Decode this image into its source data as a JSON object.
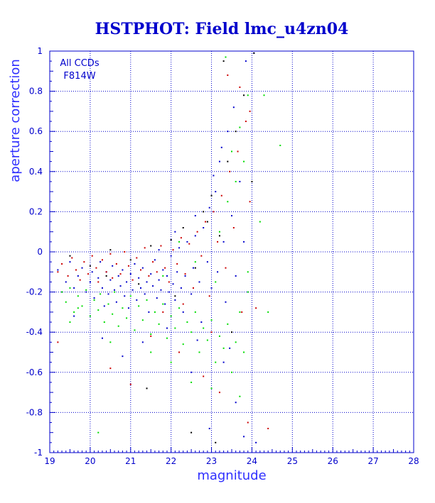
{
  "chart_data": {
    "type": "scatter",
    "title": "HSTPHOT: Field lmc_u4zn04",
    "xlabel": "magnitude",
    "ylabel": "aperture correction",
    "xlim": [
      19,
      28
    ],
    "ylim": [
      -1,
      1
    ],
    "xticks": [
      "19",
      "20",
      "21",
      "22",
      "23",
      "24",
      "25",
      "26",
      "27",
      "28"
    ],
    "yticks": [
      "-1",
      "-0.8",
      "-0.6",
      "-0.4",
      "-0.2",
      "0",
      "0.2",
      "0.4",
      "0.6",
      "0.8",
      "1"
    ],
    "grid": true,
    "annotations": [
      "All CCDs",
      "F814W"
    ],
    "series": [
      {
        "color": "#0000cc",
        "points": [
          [
            19.2,
            -0.09
          ],
          [
            19.4,
            -0.15
          ],
          [
            19.5,
            -0.05
          ],
          [
            19.6,
            -0.18
          ],
          [
            19.7,
            -0.12
          ],
          [
            19.8,
            -0.08
          ],
          [
            19.9,
            -0.2
          ],
          [
            20.0,
            -0.15
          ],
          [
            20.05,
            -0.1
          ],
          [
            20.1,
            -0.23
          ],
          [
            20.2,
            -0.13
          ],
          [
            20.25,
            -0.05
          ],
          [
            20.3,
            -0.18
          ],
          [
            20.35,
            -0.27
          ],
          [
            20.4,
            -0.1
          ],
          [
            20.45,
            -0.21
          ],
          [
            20.5,
            -0.14
          ],
          [
            20.55,
            -0.07
          ],
          [
            20.6,
            -0.19
          ],
          [
            20.65,
            -0.25
          ],
          [
            20.7,
            -0.12
          ],
          [
            20.75,
            -0.17
          ],
          [
            20.8,
            -0.09
          ],
          [
            20.85,
            -0.22
          ],
          [
            20.9,
            -0.15
          ],
          [
            20.95,
            -0.28
          ],
          [
            21.0,
            -0.11
          ],
          [
            21.05,
            -0.19
          ],
          [
            21.1,
            -0.06
          ],
          [
            21.15,
            -0.24
          ],
          [
            21.2,
            -0.13
          ],
          [
            21.25,
            -0.18
          ],
          [
            21.3,
            -0.08
          ],
          [
            21.35,
            -0.21
          ],
          [
            21.4,
            -0.15
          ],
          [
            21.45,
            -0.3
          ],
          [
            21.5,
            -0.11
          ],
          [
            21.55,
            -0.17
          ],
          [
            21.6,
            -0.04
          ],
          [
            21.65,
            -0.23
          ],
          [
            21.7,
            -0.14
          ],
          [
            21.75,
            -0.19
          ],
          [
            21.8,
            -0.09
          ],
          [
            21.85,
            -0.26
          ],
          [
            21.9,
            -0.12
          ],
          [
            21.95,
            -0.2
          ],
          [
            22.0,
            -0.02
          ],
          [
            22.05,
            -0.16
          ],
          [
            22.1,
            -0.24
          ],
          [
            22.15,
            -0.1
          ],
          [
            22.2,
            0.02
          ],
          [
            22.25,
            -0.18
          ],
          [
            22.3,
            -0.3
          ],
          [
            22.35,
            -0.12
          ],
          [
            22.4,
            0.05
          ],
          [
            22.5,
            -0.21
          ],
          [
            22.55,
            -0.08
          ],
          [
            22.6,
            0.08
          ],
          [
            22.7,
            -0.15
          ],
          [
            22.75,
            -0.35
          ],
          [
            22.8,
            0.12
          ],
          [
            22.9,
            -0.05
          ],
          [
            22.95,
            0.22
          ],
          [
            23.0,
            -0.18
          ],
          [
            23.1,
            0.3
          ],
          [
            23.15,
            -0.1
          ],
          [
            23.2,
            0.45
          ],
          [
            23.3,
            0.05
          ],
          [
            23.35,
            -0.25
          ],
          [
            23.4,
            0.6
          ],
          [
            23.5,
            0.18
          ],
          [
            23.6,
            -0.12
          ],
          [
            23.7,
            0.35
          ],
          [
            23.8,
            0.05
          ],
          [
            23.9,
            -0.2
          ],
          [
            22.5,
            -0.6
          ],
          [
            23.3,
            -0.55
          ],
          [
            21.3,
            -0.45
          ],
          [
            20.8,
            -0.52
          ],
          [
            23.6,
            -0.75
          ],
          [
            22.95,
            -0.88
          ],
          [
            23.8,
            -0.92
          ],
          [
            24.1,
            -0.95
          ],
          [
            20.3,
            -0.43
          ],
          [
            19.6,
            -0.32
          ],
          [
            21.7,
            0.01
          ],
          [
            22.1,
            0.1
          ],
          [
            22.6,
            0.18
          ],
          [
            23.05,
            0.38
          ],
          [
            23.25,
            0.52
          ],
          [
            23.55,
            0.72
          ],
          [
            23.85,
            0.95
          ],
          [
            24.05,
            0.99
          ],
          [
            21.9,
            -0.38
          ],
          [
            22.65,
            -0.44
          ],
          [
            23.45,
            -0.48
          ]
        ]
      },
      {
        "color": "#cc0000",
        "points": [
          [
            19.2,
            -0.1
          ],
          [
            19.3,
            -0.06
          ],
          [
            19.45,
            -0.12
          ],
          [
            19.55,
            -0.03
          ],
          [
            19.65,
            -0.09
          ],
          [
            19.75,
            -0.14
          ],
          [
            19.85,
            -0.05
          ],
          [
            19.95,
            -0.11
          ],
          [
            20.05,
            -0.02
          ],
          [
            20.15,
            -0.08
          ],
          [
            20.2,
            -0.15
          ],
          [
            20.3,
            -0.04
          ],
          [
            20.4,
            -0.1
          ],
          [
            20.5,
            -0.01
          ],
          [
            20.55,
            -0.13
          ],
          [
            20.65,
            -0.06
          ],
          [
            20.75,
            -0.11
          ],
          [
            20.85,
            0.0
          ],
          [
            20.95,
            -0.07
          ],
          [
            21.05,
            -0.14
          ],
          [
            21.15,
            -0.03
          ],
          [
            21.25,
            -0.09
          ],
          [
            21.35,
            0.02
          ],
          [
            21.45,
            -0.12
          ],
          [
            21.55,
            -0.05
          ],
          [
            21.65,
            -0.1
          ],
          [
            21.75,
            0.03
          ],
          [
            21.85,
            -0.08
          ],
          [
            21.95,
            -0.15
          ],
          [
            22.05,
            0.01
          ],
          [
            22.15,
            -0.06
          ],
          [
            22.25,
            0.07
          ],
          [
            22.35,
            -0.11
          ],
          [
            22.45,
            0.04
          ],
          [
            22.55,
            -0.18
          ],
          [
            22.65,
            0.1
          ],
          [
            22.75,
            -0.02
          ],
          [
            22.85,
            0.15
          ],
          [
            22.95,
            -0.22
          ],
          [
            23.05,
            0.2
          ],
          [
            23.15,
            0.05
          ],
          [
            23.25,
            0.28
          ],
          [
            23.35,
            -0.08
          ],
          [
            23.45,
            0.4
          ],
          [
            23.55,
            0.12
          ],
          [
            23.65,
            0.5
          ],
          [
            23.75,
            -0.3
          ],
          [
            23.85,
            0.65
          ],
          [
            23.95,
            0.25
          ],
          [
            23.4,
            0.88
          ],
          [
            23.7,
            0.82
          ],
          [
            23.95,
            0.7
          ],
          [
            21.5,
            -0.42
          ],
          [
            20.5,
            -0.58
          ],
          [
            22.2,
            -0.5
          ],
          [
            21.0,
            -0.66
          ],
          [
            22.8,
            -0.62
          ],
          [
            23.9,
            -0.85
          ],
          [
            24.4,
            -0.88
          ],
          [
            19.2,
            -0.45
          ],
          [
            24.1,
            -0.28
          ],
          [
            23.2,
            -0.7
          ],
          [
            22.3,
            -0.26
          ],
          [
            21.8,
            -0.3
          ],
          [
            23.0,
            -0.4
          ]
        ]
      },
      {
        "color": "#00dd00",
        "points": [
          [
            19.3,
            -0.2
          ],
          [
            19.4,
            -0.25
          ],
          [
            19.5,
            -0.18
          ],
          [
            19.6,
            -0.3
          ],
          [
            19.7,
            -0.22
          ],
          [
            19.8,
            -0.27
          ],
          [
            19.9,
            -0.19
          ],
          [
            20.0,
            -0.32
          ],
          [
            20.1,
            -0.24
          ],
          [
            20.2,
            -0.29
          ],
          [
            20.25,
            -0.21
          ],
          [
            20.35,
            -0.35
          ],
          [
            20.45,
            -0.26
          ],
          [
            20.55,
            -0.31
          ],
          [
            20.6,
            -0.2
          ],
          [
            20.7,
            -0.37
          ],
          [
            20.8,
            -0.28
          ],
          [
            20.9,
            -0.33
          ],
          [
            21.0,
            -0.22
          ],
          [
            21.1,
            -0.39
          ],
          [
            21.2,
            -0.27
          ],
          [
            21.3,
            -0.34
          ],
          [
            21.4,
            -0.24
          ],
          [
            21.5,
            -0.41
          ],
          [
            21.6,
            -0.3
          ],
          [
            21.7,
            -0.36
          ],
          [
            21.8,
            -0.26
          ],
          [
            21.9,
            -0.43
          ],
          [
            22.0,
            -0.32
          ],
          [
            22.1,
            -0.38
          ],
          [
            22.2,
            -0.28
          ],
          [
            22.3,
            -0.46
          ],
          [
            22.4,
            -0.35
          ],
          [
            22.5,
            -0.4
          ],
          [
            22.6,
            -0.3
          ],
          [
            22.7,
            -0.5
          ],
          [
            22.8,
            -0.38
          ],
          [
            22.9,
            -0.44
          ],
          [
            23.0,
            -0.34
          ],
          [
            23.1,
            -0.55
          ],
          [
            23.2,
            -0.42
          ],
          [
            23.3,
            -0.48
          ],
          [
            23.4,
            -0.36
          ],
          [
            23.5,
            -0.6
          ],
          [
            23.6,
            -0.45
          ],
          [
            23.7,
            -0.3
          ],
          [
            23.8,
            -0.5
          ],
          [
            23.9,
            -0.2
          ],
          [
            23.2,
            0.1
          ],
          [
            23.4,
            0.25
          ],
          [
            23.6,
            0.35
          ],
          [
            23.8,
            0.45
          ],
          [
            23.5,
            0.5
          ],
          [
            23.7,
            0.62
          ],
          [
            23.9,
            0.78
          ],
          [
            23.35,
            0.97
          ],
          [
            24.3,
            0.78
          ],
          [
            24.7,
            0.53
          ],
          [
            24.2,
            0.15
          ],
          [
            24.4,
            -0.3
          ],
          [
            22.0,
            -0.55
          ],
          [
            21.5,
            -0.5
          ],
          [
            20.5,
            -0.45
          ],
          [
            22.5,
            -0.65
          ],
          [
            23.0,
            -0.68
          ],
          [
            23.7,
            -0.72
          ],
          [
            19.5,
            -0.35
          ],
          [
            19.7,
            -0.28
          ],
          [
            20.2,
            -0.9
          ],
          [
            21.8,
            -0.12
          ],
          [
            22.6,
            -0.05
          ],
          [
            23.1,
            -0.15
          ],
          [
            22.2,
            0.05
          ],
          [
            23.9,
            -0.1
          ]
        ]
      },
      {
        "color": "#000000",
        "points": [
          [
            19.5,
            -0.02
          ],
          [
            20.0,
            -0.07
          ],
          [
            20.5,
            0.01
          ],
          [
            21.0,
            -0.04
          ],
          [
            21.5,
            0.03
          ],
          [
            22.0,
            0.06
          ],
          [
            22.3,
            0.12
          ],
          [
            22.6,
            -0.08
          ],
          [
            22.8,
            0.2
          ],
          [
            23.0,
            0.28
          ],
          [
            23.2,
            0.08
          ],
          [
            23.4,
            0.45
          ],
          [
            23.6,
            0.6
          ],
          [
            23.8,
            0.78
          ],
          [
            24.05,
            0.99
          ],
          [
            23.3,
            0.95
          ],
          [
            22.5,
            -0.9
          ],
          [
            23.1,
            -0.95
          ],
          [
            21.4,
            -0.68
          ],
          [
            20.4,
            -0.12
          ],
          [
            21.2,
            -0.16
          ],
          [
            22.1,
            -0.22
          ],
          [
            23.5,
            -0.4
          ],
          [
            22.9,
            0.15
          ],
          [
            24.0,
            0.35
          ]
        ]
      }
    ]
  }
}
